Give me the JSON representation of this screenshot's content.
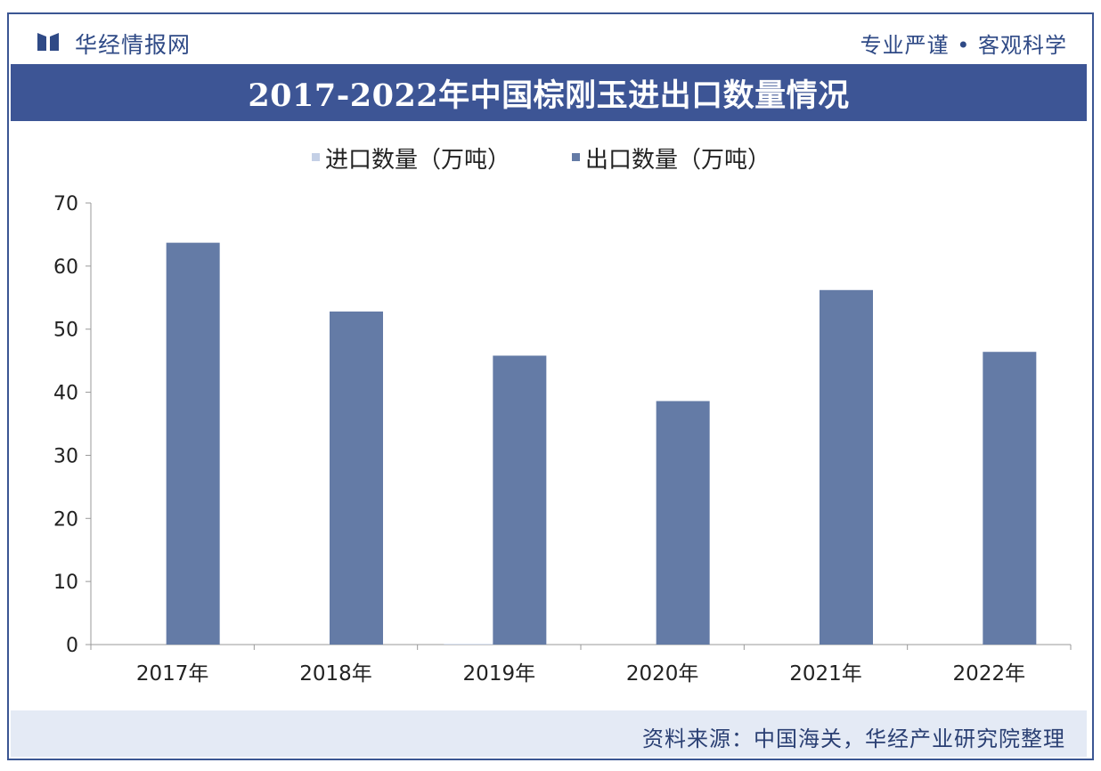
{
  "header": {
    "brand": "华经情报网",
    "slogan": "专业严谨 • 客观科学",
    "title": "2017-2022年中国棕刚玉进出口数量情况"
  },
  "footer": {
    "source": "资料来源：中国海关，华经产业研究院整理"
  },
  "colors": {
    "accent": "#3d5595",
    "export_bar": "#647ba6",
    "import_bar": "#c4d0e6"
  },
  "chart_data": {
    "type": "bar",
    "categories": [
      "2017年",
      "2018年",
      "2019年",
      "2020年",
      "2021年",
      "2022年"
    ],
    "series": [
      {
        "name": "进口数量（万吨）",
        "values": [
          0,
          0,
          0.1,
          0,
          0,
          0
        ]
      },
      {
        "name": "出口数量（万吨）",
        "values": [
          63.7,
          52.8,
          45.8,
          38.6,
          56.2,
          46.4
        ]
      }
    ],
    "ylim": [
      0,
      70
    ],
    "yticks": [
      0,
      10,
      20,
      30,
      40,
      50,
      60,
      70
    ],
    "legend_position": "top",
    "grid": false
  }
}
